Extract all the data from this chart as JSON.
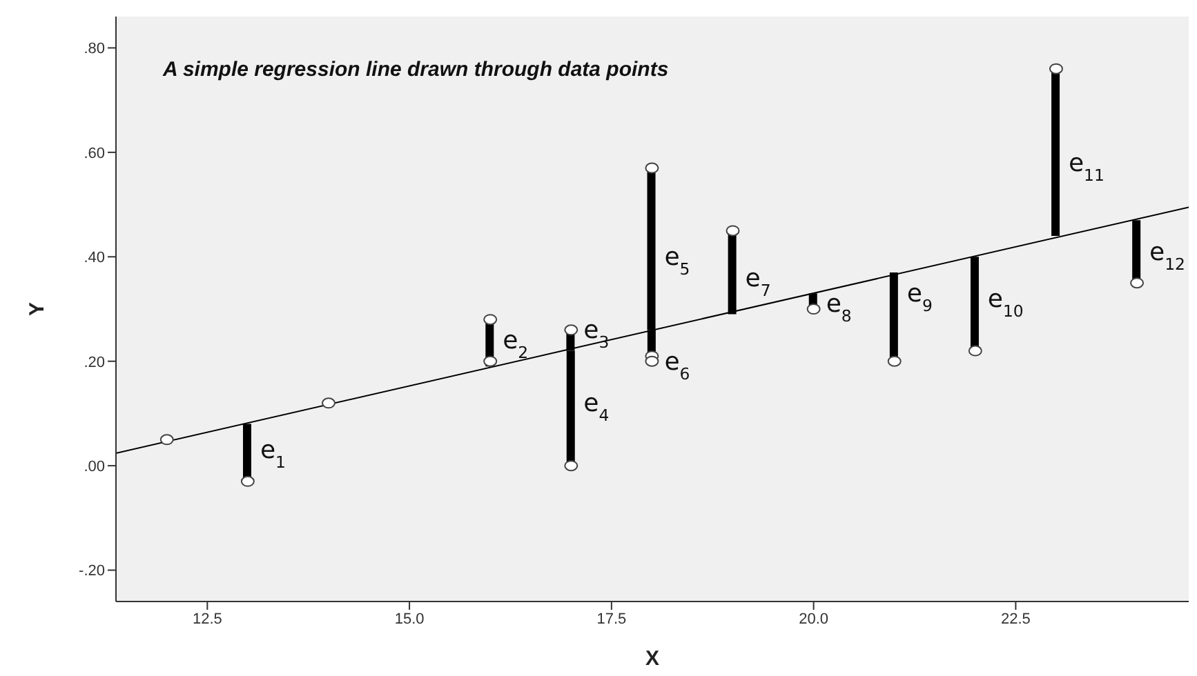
{
  "chart_data": {
    "type": "scatter",
    "xlabel": "X",
    "ylabel": "Y",
    "xlim": [
      11.37,
      24.64
    ],
    "ylim": [
      -0.26,
      0.86
    ],
    "xticks": [
      12.5,
      {
        "value": 15,
        "label": "15.0"
      },
      17.5,
      {
        "value": 20,
        "label": "20.0"
      },
      22.5
    ],
    "yticks": [
      {
        "value": -0.2,
        "label": "-.20"
      },
      {
        "value": 0,
        "label": ".00"
      },
      {
        "value": 0.2,
        "label": ".20"
      },
      {
        "value": 0.4,
        "label": ".40"
      },
      {
        "value": 0.6,
        "label": ".60"
      },
      {
        "value": 0.8,
        "label": ".80"
      }
    ],
    "grid": false,
    "marker": "circle",
    "series": [
      {
        "type": "bar",
        "color": "#000000",
        "x": [
          13,
          16,
          17,
          18,
          19,
          20,
          21,
          22,
          23,
          24
        ],
        "base": [
          -0.03,
          0.28,
          0.26,
          0.57,
          0.45,
          0.3,
          0.2,
          0.22,
          0.76,
          0.35
        ],
        "values": [
          0.11,
          -0.09,
          -0.04,
          -0.31,
          -0.16,
          0.03,
          0.17,
          0.18,
          -0.32,
          0.12
        ]
      },
      {
        "type": "bar",
        "color": "#000000",
        "x": [
          17,
          18
        ],
        "base": [
          0.0,
          0.2
        ],
        "values": [
          0.22,
          0.06
        ]
      },
      {
        "type": "line",
        "color": "#000000",
        "marker": "none",
        "x": [
          11.37,
          24.64
        ],
        "values": [
          0.024,
          0.495
        ]
      },
      {
        "color": "#444444",
        "x": [
          12,
          13,
          14,
          16,
          16,
          17,
          17,
          18,
          18,
          18,
          19,
          20,
          21,
          22,
          23,
          24
        ],
        "values": [
          0.05,
          -0.03,
          0.12,
          0.28,
          0.2,
          0.26,
          0.0,
          0.57,
          0.21,
          0.2,
          0.45,
          0.3,
          0.2,
          0.22,
          0.76,
          0.35
        ]
      }
    ],
    "annotations": [
      "A simple regression line drawn through data points",
      {
        "text": "e$_{1}$",
        "x": 13,
        "y": 0.03
      },
      {
        "text": "e$_{2}$",
        "x": 16,
        "y": 0.24
      },
      {
        "text": "e$_{3}$",
        "x": 17,
        "y": 0.26
      },
      {
        "text": "e$_{4}$",
        "x": 17,
        "y": 0.12
      },
      {
        "text": "e$_{5}$",
        "x": 18,
        "y": 0.4
      },
      {
        "text": "e$_{6}$",
        "x": 18,
        "y": 0.2
      },
      {
        "text": "e$_{7}$",
        "x": 19,
        "y": 0.36
      },
      {
        "text": "e$_{8}$",
        "x": 20,
        "y": 0.31
      },
      {
        "text": "e$_{9}$",
        "x": 21,
        "y": 0.33
      },
      {
        "text": "e$_{10}$",
        "x": 22,
        "y": 0.32
      },
      {
        "text": "e$_{11}$",
        "x": 23,
        "y": 0.58
      },
      {
        "text": "e$_{12}$",
        "x": 24,
        "y": 0.41
      }
    ]
  }
}
